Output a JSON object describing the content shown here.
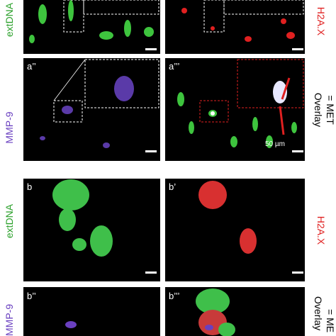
{
  "rows": [
    {
      "left_label": "extDNA",
      "right_label": "H2A.X"
    },
    {
      "panel_labels": [
        "a’’",
        "a’’’"
      ],
      "left_label": "MMP-9",
      "right_label_lines": [
        "Overlay",
        "= MET"
      ],
      "scale_bar": "50 µm"
    },
    {
      "panel_labels": [
        "b",
        "b’"
      ],
      "left_label": "extDNA",
      "right_label": "H2A.X"
    },
    {
      "panel_labels": [
        "b’’",
        "b’’’"
      ],
      "left_label": "MMP-9",
      "right_label_lines": [
        "Overlay",
        "= ME"
      ]
    }
  ]
}
